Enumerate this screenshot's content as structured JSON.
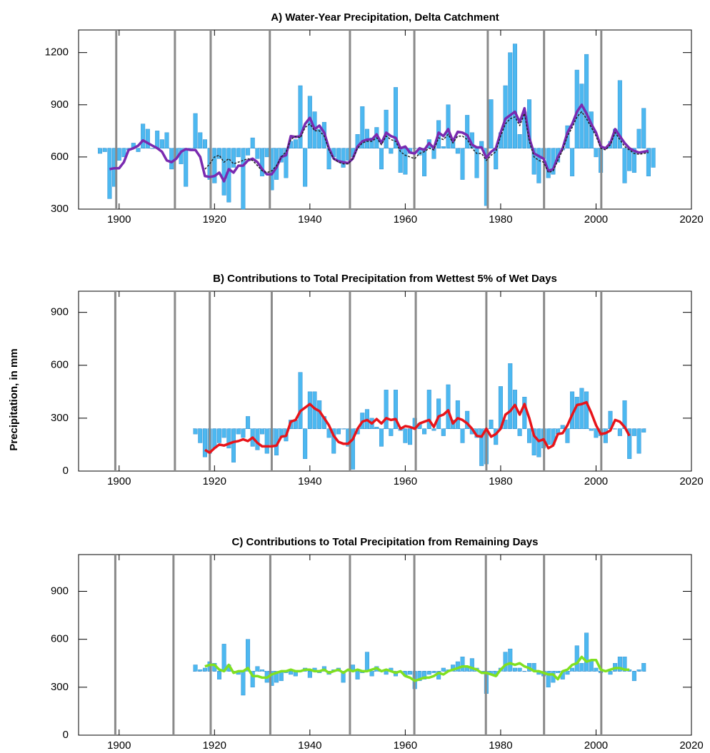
{
  "chart_data": [
    {
      "type": "bar",
      "title": "A) Water-Year Precipitation, Delta Catchment",
      "x": [
        1896,
        1897,
        1898,
        1899,
        1900,
        1901,
        1902,
        1903,
        1904,
        1905,
        1906,
        1907,
        1908,
        1909,
        1910,
        1911,
        1912,
        1913,
        1914,
        1915,
        1916,
        1917,
        1918,
        1919,
        1920,
        1921,
        1922,
        1923,
        1924,
        1925,
        1926,
        1927,
        1928,
        1929,
        1930,
        1931,
        1932,
        1933,
        1934,
        1935,
        1936,
        1937,
        1938,
        1939,
        1940,
        1941,
        1942,
        1943,
        1944,
        1945,
        1946,
        1947,
        1948,
        1949,
        1950,
        1951,
        1952,
        1953,
        1954,
        1955,
        1956,
        1957,
        1958,
        1959,
        1960,
        1961,
        1962,
        1963,
        1964,
        1965,
        1966,
        1967,
        1968,
        1969,
        1970,
        1971,
        1972,
        1973,
        1974,
        1975,
        1976,
        1977,
        1978,
        1979,
        1980,
        1981,
        1982,
        1983,
        1984,
        1985,
        1986,
        1987,
        1988,
        1989,
        1990,
        1991,
        1992,
        1993,
        1994,
        1995,
        1996,
        1997,
        1998,
        1999,
        2000,
        2001,
        2002,
        2003,
        2004,
        2005,
        2006,
        2007,
        2008,
        2009,
        2010,
        2011,
        2012
      ],
      "xlim": [
        1891.5,
        2020
      ],
      "xticks": [
        1900,
        1920,
        1940,
        1960,
        1980,
        2000,
        2020
      ],
      "ylim": [
        300,
        1330
      ],
      "yticks": [
        300,
        600,
        900,
        1200
      ],
      "baseline": 650,
      "vlines": [
        1899.4,
        1911.7,
        1919.2,
        1931.6,
        1948.4,
        1961.9,
        1977.3,
        1989.1,
        2001.1
      ],
      "vline_color": "#8a8a8a",
      "series": [
        {
          "style": "bar",
          "color": "#4db8f0",
          "values": [
            620,
            630,
            360,
            430,
            580,
            600,
            640,
            680,
            630,
            790,
            760,
            650,
            750,
            700,
            740,
            530,
            600,
            560,
            430,
            640,
            850,
            740,
            700,
            470,
            450,
            590,
            380,
            340,
            540,
            600,
            300,
            610,
            710,
            590,
            490,
            600,
            410,
            470,
            570,
            480,
            690,
            700,
            1010,
            430,
            950,
            860,
            760,
            800,
            530,
            600,
            580,
            540,
            580,
            600,
            730,
            890,
            760,
            710,
            770,
            530,
            870,
            620,
            1000,
            510,
            500,
            620,
            650,
            610,
            490,
            700,
            590,
            810,
            660,
            900,
            700,
            620,
            470,
            840,
            740,
            480,
            690,
            320,
            930,
            530,
            740,
            1010,
            1200,
            1250,
            730,
            860,
            930,
            500,
            450,
            590,
            480,
            500,
            570,
            640,
            780,
            490,
            1100,
            1020,
            1190,
            860,
            600,
            510,
            650,
            690,
            760,
            1040,
            450,
            520,
            510,
            760,
            880,
            490,
            540
          ]
        },
        {
          "style": "line",
          "color": "#7a2ab0",
          "values": [
            null,
            null,
            530,
            535,
            535,
            570,
            640,
            650,
            665,
            695,
            680,
            665,
            650,
            630,
            580,
            570,
            590,
            630,
            645,
            640,
            640,
            600,
            490,
            485,
            490,
            510,
            460,
            530,
            510,
            550,
            550,
            580,
            590,
            570,
            530,
            500,
            500,
            540,
            600,
            610,
            720,
            715,
            720,
            790,
            825,
            760,
            780,
            740,
            650,
            590,
            575,
            570,
            565,
            590,
            660,
            690,
            700,
            700,
            730,
            680,
            740,
            720,
            710,
            650,
            660,
            625,
            620,
            650,
            640,
            680,
            650,
            740,
            720,
            760,
            690,
            745,
            740,
            725,
            670,
            655,
            655,
            595,
            630,
            650,
            740,
            820,
            840,
            860,
            800,
            880,
            710,
            620,
            605,
            590,
            520,
            530,
            600,
            650,
            740,
            790,
            860,
            900,
            850,
            790,
            740,
            660,
            650,
            680,
            760,
            720,
            680,
            650,
            635,
            625,
            630,
            635,
            null
          ]
        },
        {
          "style": "dashed",
          "color": "#222222",
          "values": [
            null,
            null,
            null,
            null,
            null,
            null,
            null,
            null,
            null,
            null,
            null,
            null,
            null,
            null,
            null,
            null,
            null,
            null,
            null,
            null,
            null,
            null,
            530,
            560,
            600,
            610,
            570,
            590,
            560,
            570,
            580,
            590,
            580,
            550,
            520,
            510,
            520,
            550,
            600,
            630,
            700,
            720,
            710,
            770,
            790,
            750,
            750,
            720,
            640,
            590,
            570,
            560,
            560,
            590,
            650,
            680,
            690,
            690,
            710,
            670,
            720,
            700,
            690,
            630,
            610,
            600,
            590,
            620,
            630,
            650,
            640,
            710,
            700,
            730,
            680,
            720,
            720,
            700,
            650,
            620,
            620,
            580,
            610,
            630,
            720,
            790,
            820,
            830,
            780,
            850,
            690,
            600,
            580,
            570,
            510,
            520,
            580,
            640,
            720,
            770,
            830,
            860,
            820,
            770,
            720,
            650,
            640,
            670,
            740,
            700,
            660,
            640,
            620,
            615,
            620,
            625,
            null
          ]
        }
      ]
    },
    {
      "type": "bar",
      "title": "B) Contributions to Total Precipitation from Wettest 5% of Wet Days",
      "ylabel": "Precipitation, in mm",
      "x": [
        1916,
        1917,
        1918,
        1919,
        1920,
        1921,
        1922,
        1923,
        1924,
        1925,
        1926,
        1927,
        1928,
        1929,
        1930,
        1931,
        1932,
        1933,
        1934,
        1935,
        1936,
        1937,
        1938,
        1939,
        1940,
        1941,
        1942,
        1943,
        1944,
        1945,
        1946,
        1947,
        1948,
        1949,
        1950,
        1951,
        1952,
        1953,
        1954,
        1955,
        1956,
        1957,
        1958,
        1959,
        1960,
        1961,
        1962,
        1963,
        1964,
        1965,
        1966,
        1967,
        1968,
        1969,
        1970,
        1971,
        1972,
        1973,
        1974,
        1975,
        1976,
        1977,
        1978,
        1979,
        1980,
        1981,
        1982,
        1983,
        1984,
        1985,
        1986,
        1987,
        1988,
        1989,
        1990,
        1991,
        1992,
        1993,
        1994,
        1995,
        1996,
        1997,
        1998,
        1999,
        2000,
        2001,
        2002,
        2003,
        2004,
        2005,
        2006,
        2007,
        2008,
        2009,
        2010
      ],
      "xlim": [
        1891.5,
        2020
      ],
      "xticks": [
        1900,
        1920,
        1940,
        1960,
        1980,
        2000,
        2020
      ],
      "ylim": [
        0,
        1020
      ],
      "yticks": [
        0,
        300,
        600,
        900
      ],
      "baseline": 240,
      "vlines": [
        1899.2,
        1911.7,
        1919.0,
        1932.0,
        1948.4,
        1962.2,
        1977.0,
        1989.1,
        2001.1
      ],
      "vline_color": "#8a8a8a",
      "series": [
        {
          "style": "bar",
          "color": "#4db8f0",
          "values": [
            210,
            160,
            80,
            100,
            130,
            160,
            190,
            130,
            50,
            210,
            190,
            310,
            140,
            120,
            210,
            100,
            150,
            90,
            190,
            170,
            290,
            290,
            560,
            70,
            450,
            450,
            400,
            310,
            190,
            100,
            210,
            240,
            140,
            10,
            210,
            330,
            350,
            300,
            250,
            140,
            460,
            200,
            460,
            230,
            160,
            150,
            300,
            270,
            210,
            460,
            230,
            410,
            200,
            490,
            290,
            400,
            160,
            340,
            210,
            190,
            30,
            40,
            290,
            150,
            480,
            290,
            610,
            460,
            200,
            420,
            160,
            90,
            80,
            130,
            150,
            150,
            210,
            260,
            160,
            450,
            420,
            470,
            450,
            230,
            190,
            200,
            160,
            340,
            240,
            200,
            400,
            70,
            200,
            100,
            220
          ]
        },
        {
          "style": "line",
          "color": "#e8141a",
          "values": [
            null,
            null,
            120,
            105,
            130,
            150,
            145,
            155,
            165,
            170,
            180,
            170,
            190,
            160,
            140,
            140,
            140,
            145,
            195,
            200,
            280,
            290,
            340,
            360,
            380,
            355,
            340,
            300,
            260,
            200,
            165,
            155,
            155,
            180,
            240,
            280,
            290,
            270,
            295,
            270,
            300,
            290,
            295,
            240,
            255,
            250,
            240,
            270,
            280,
            290,
            250,
            310,
            320,
            345,
            270,
            300,
            290,
            270,
            240,
            200,
            195,
            240,
            195,
            210,
            240,
            320,
            340,
            375,
            320,
            380,
            300,
            200,
            170,
            180,
            130,
            145,
            210,
            215,
            260,
            320,
            375,
            380,
            390,
            330,
            260,
            210,
            215,
            230,
            290,
            280,
            250,
            200,
            null,
            null,
            null
          ]
        }
      ]
    },
    {
      "type": "bar",
      "title": "C) Contributions to Total Precipitation from Remaining Days",
      "x": [
        1916,
        1917,
        1918,
        1919,
        1920,
        1921,
        1922,
        1923,
        1924,
        1925,
        1926,
        1927,
        1928,
        1929,
        1930,
        1931,
        1932,
        1933,
        1934,
        1935,
        1936,
        1937,
        1938,
        1939,
        1940,
        1941,
        1942,
        1943,
        1944,
        1945,
        1946,
        1947,
        1948,
        1949,
        1950,
        1951,
        1952,
        1953,
        1954,
        1955,
        1956,
        1957,
        1958,
        1959,
        1960,
        1961,
        1962,
        1963,
        1964,
        1965,
        1966,
        1967,
        1968,
        1969,
        1970,
        1971,
        1972,
        1973,
        1974,
        1975,
        1976,
        1977,
        1978,
        1979,
        1980,
        1981,
        1982,
        1983,
        1984,
        1985,
        1986,
        1987,
        1988,
        1989,
        1990,
        1991,
        1992,
        1993,
        1994,
        1995,
        1996,
        1997,
        1998,
        1999,
        2000,
        2001,
        2002,
        2003,
        2004,
        2005,
        2006,
        2007,
        2008,
        2009,
        2010
      ],
      "xlim": [
        1891.5,
        2020
      ],
      "xticks": [
        1900,
        1920,
        1940,
        1960,
        1980,
        2000,
        2020
      ],
      "ylim": [
        0,
        1130
      ],
      "yticks": [
        0,
        300,
        600,
        900
      ],
      "baseline": 400,
      "vlines": [
        1899.2,
        1911.4,
        1919.2,
        1931.7,
        1948.4,
        1961.9,
        1976.9,
        1989.1,
        2001.1
      ],
      "vline_color": "#8a8a8a",
      "series": [
        {
          "style": "bar",
          "color": "#4db8f0",
          "values": [
            440,
            410,
            420,
            460,
            450,
            350,
            570,
            440,
            400,
            380,
            250,
            600,
            300,
            430,
            410,
            330,
            310,
            330,
            340,
            390,
            380,
            370,
            400,
            420,
            360,
            420,
            390,
            430,
            380,
            410,
            420,
            330,
            410,
            440,
            350,
            390,
            520,
            370,
            430,
            400,
            380,
            420,
            370,
            400,
            370,
            380,
            290,
            340,
            350,
            380,
            390,
            350,
            420,
            410,
            440,
            460,
            490,
            430,
            480,
            420,
            400,
            260,
            380,
            370,
            420,
            520,
            540,
            420,
            420,
            400,
            450,
            450,
            380,
            370,
            300,
            330,
            390,
            350,
            380,
            420,
            560,
            450,
            640,
            470,
            420,
            390,
            400,
            380,
            450,
            490,
            490,
            410,
            340,
            410,
            450
          ]
        },
        {
          "style": "line",
          "color": "#80e020",
          "values": [
            null,
            null,
            430,
            440,
            440,
            410,
            400,
            440,
            390,
            400,
            400,
            420,
            370,
            370,
            360,
            360,
            380,
            390,
            400,
            400,
            410,
            400,
            400,
            410,
            410,
            400,
            400,
            410,
            390,
            400,
            410,
            390,
            410,
            400,
            410,
            400,
            400,
            410,
            420,
            400,
            410,
            400,
            390,
            400,
            370,
            360,
            340,
            350,
            360,
            360,
            370,
            390,
            380,
            400,
            410,
            420,
            430,
            430,
            420,
            410,
            390,
            390,
            380,
            370,
            410,
            440,
            450,
            440,
            450,
            430,
            420,
            400,
            400,
            390,
            380,
            380,
            350,
            400,
            410,
            440,
            450,
            490,
            460,
            470,
            470,
            410,
            400,
            410,
            420,
            420,
            410,
            410,
            null,
            null,
            null
          ]
        }
      ]
    }
  ]
}
